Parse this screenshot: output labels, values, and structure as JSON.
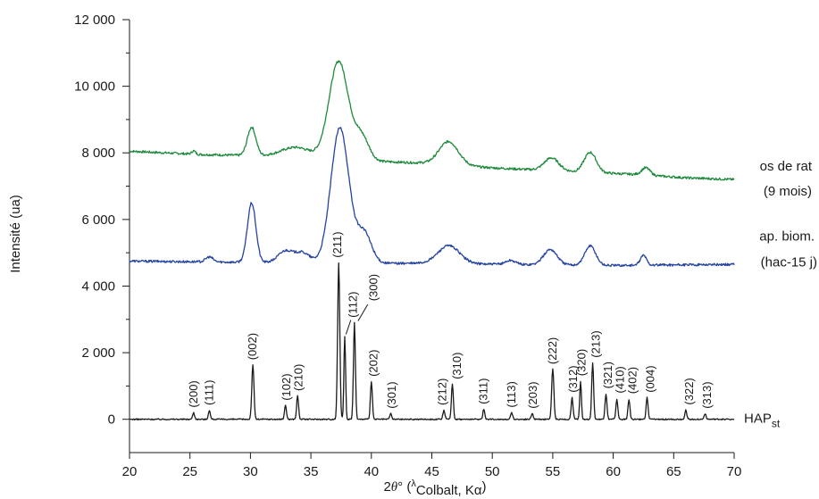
{
  "chart_data": {
    "type": "line",
    "xlabel": "2θ° (λColbalt, Kα)",
    "xlabel_parts": {
      "main": "2",
      "theta": "θ",
      "deg": "° (",
      "lambda": "λ",
      "sub": "Colbalt, Kα",
      "close": ")"
    },
    "ylabel": "Intensité (ua)",
    "xlim": [
      20,
      70
    ],
    "ylim": [
      -1000,
      12000
    ],
    "x_ticks": [
      20,
      25,
      30,
      35,
      40,
      45,
      50,
      55,
      60,
      65,
      70
    ],
    "x_tick_labels": [
      "20",
      "25",
      "30",
      "35",
      "40",
      "45",
      "50",
      "55",
      "60",
      "65",
      "70"
    ],
    "y_ticks": [
      0,
      2000,
      4000,
      6000,
      8000,
      10000,
      12000
    ],
    "y_tick_labels": [
      "0",
      "2 000",
      "4 000",
      "6 000",
      "8 000",
      "10 000",
      "12 000"
    ],
    "series": [
      {
        "labels": [
          "os de rat",
          "(9 mois)"
        ],
        "color": "#1e8a3c",
        "baseline": [
          [
            20,
            8050
          ],
          [
            26,
            7950
          ],
          [
            32,
            7900
          ],
          [
            40,
            7750
          ],
          [
            44,
            7700
          ],
          [
            50,
            7550
          ],
          [
            56,
            7450
          ],
          [
            62,
            7350
          ],
          [
            66,
            7250
          ],
          [
            70,
            7200
          ]
        ],
        "peaks": [
          [
            25.3,
            100,
            0.15
          ],
          [
            30.1,
            850,
            0.35
          ],
          [
            33.8,
            300,
            1.2
          ],
          [
            37.3,
            2950,
            0.8
          ],
          [
            39.2,
            700,
            0.6
          ],
          [
            46.4,
            700,
            0.8
          ],
          [
            54.9,
            380,
            0.6
          ],
          [
            58.1,
            600,
            0.5
          ],
          [
            62.7,
            220,
            0.35
          ]
        ]
      },
      {
        "labels": [
          "ap. biom.",
          "(hac-15 j)"
        ],
        "color": "#2444a0",
        "baseline": [
          [
            20,
            4750
          ],
          [
            28,
            4720
          ],
          [
            34,
            4700
          ],
          [
            44,
            4680
          ],
          [
            52,
            4650
          ],
          [
            60,
            4620
          ],
          [
            70,
            4650
          ]
        ],
        "peaks": [
          [
            26.6,
            150,
            0.3
          ],
          [
            30.1,
            1780,
            0.35
          ],
          [
            32.9,
            350,
            0.6
          ],
          [
            34.3,
            300,
            0.6
          ],
          [
            37.4,
            4050,
            0.75
          ],
          [
            39.4,
            900,
            0.6
          ],
          [
            46.4,
            540,
            0.9
          ],
          [
            51.5,
            120,
            0.4
          ],
          [
            54.8,
            460,
            0.55
          ],
          [
            58.1,
            580,
            0.45
          ],
          [
            62.5,
            300,
            0.25
          ]
        ]
      },
      {
        "label_main": "HAP",
        "label_sub": "st",
        "color": "#1a1a1a",
        "baseline": [
          [
            20,
            0
          ],
          [
            70,
            0
          ]
        ],
        "peaks": [
          [
            25.3,
            200,
            0.08
          ],
          [
            26.6,
            270,
            0.08
          ],
          [
            30.2,
            1620,
            0.09
          ],
          [
            32.9,
            420,
            0.08
          ],
          [
            33.9,
            700,
            0.08
          ],
          [
            37.3,
            4700,
            0.09
          ],
          [
            37.8,
            2480,
            0.07
          ],
          [
            38.6,
            2900,
            0.08
          ],
          [
            40.0,
            1120,
            0.08
          ],
          [
            41.6,
            170,
            0.08
          ],
          [
            46.0,
            270,
            0.08
          ],
          [
            46.7,
            1060,
            0.08
          ],
          [
            49.3,
            300,
            0.08
          ],
          [
            51.6,
            200,
            0.08
          ],
          [
            53.3,
            170,
            0.08
          ],
          [
            55.0,
            1500,
            0.09
          ],
          [
            56.6,
            640,
            0.08
          ],
          [
            57.3,
            1150,
            0.07
          ],
          [
            58.3,
            1700,
            0.08
          ],
          [
            59.4,
            760,
            0.08
          ],
          [
            60.3,
            600,
            0.08
          ],
          [
            61.3,
            600,
            0.08
          ],
          [
            62.8,
            650,
            0.08
          ],
          [
            66.0,
            280,
            0.08
          ],
          [
            67.6,
            170,
            0.08
          ]
        ]
      }
    ],
    "peak_annotations": [
      {
        "label": "(200)",
        "x": 25.3,
        "y": 350
      },
      {
        "label": "(111)",
        "x": 26.6,
        "y": 420
      },
      {
        "label": "(002)",
        "x": 30.2,
        "y": 1780
      },
      {
        "label": "(102)",
        "x": 33.0,
        "y": 560
      },
      {
        "label": "(210)",
        "x": 34.0,
        "y": 850
      },
      {
        "label": "(211)",
        "x": 37.2,
        "y": 4850
      },
      {
        "label": "(112)",
        "x": 38.5,
        "y": 3050,
        "leader": [
          [
            37.9,
            2550
          ],
          [
            38.3,
            2980
          ]
        ]
      },
      {
        "label": "(300)",
        "x": 40.2,
        "y": 3550,
        "leader": [
          [
            38.9,
            2950
          ],
          [
            39.7,
            3450
          ]
        ]
      },
      {
        "label": "(202)",
        "x": 40.2,
        "y": 1280
      },
      {
        "label": "(301)",
        "x": 41.7,
        "y": 320
      },
      {
        "label": "(212)",
        "x": 45.9,
        "y": 420
      },
      {
        "label": "(310)",
        "x": 47.1,
        "y": 1200
      },
      {
        "label": "(311)",
        "x": 49.3,
        "y": 450
      },
      {
        "label": "(113)",
        "x": 51.6,
        "y": 350
      },
      {
        "label": "(203)",
        "x": 53.4,
        "y": 320
      },
      {
        "label": "(222)",
        "x": 55.0,
        "y": 1650
      },
      {
        "label": "(312)",
        "x": 56.7,
        "y": 800
      },
      {
        "label": "(320)",
        "x": 57.4,
        "y": 1300
      },
      {
        "label": "(213)",
        "x": 58.6,
        "y": 1850
      },
      {
        "label": "(321)",
        "x": 59.6,
        "y": 920
      },
      {
        "label": "(410)",
        "x": 60.6,
        "y": 780
      },
      {
        "label": "(402)",
        "x": 61.6,
        "y": 760
      },
      {
        "label": "(004)",
        "x": 63.1,
        "y": 800
      },
      {
        "label": "(322)",
        "x": 66.3,
        "y": 430
      },
      {
        "label": "(313)",
        "x": 67.8,
        "y": 320
      }
    ]
  }
}
